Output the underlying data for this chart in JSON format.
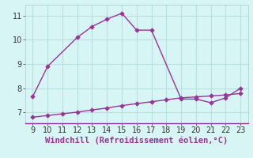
{
  "x_upper": [
    9,
    10,
    12,
    13,
    14,
    15,
    16,
    17,
    19,
    20,
    21,
    22,
    23
  ],
  "y_upper": [
    7.65,
    8.9,
    10.1,
    10.55,
    10.85,
    11.1,
    10.4,
    10.4,
    7.55,
    7.55,
    7.4,
    7.6,
    8.0
  ],
  "x_lower": [
    9,
    10,
    11,
    12,
    13,
    14,
    15,
    16,
    17,
    18,
    19,
    20,
    21,
    22,
    23
  ],
  "y_lower": [
    6.8,
    6.87,
    6.94,
    7.01,
    7.1,
    7.18,
    7.28,
    7.36,
    7.44,
    7.52,
    7.6,
    7.64,
    7.68,
    7.72,
    7.78
  ],
  "line_color": "#993399",
  "bg_color": "#d8f5f5",
  "grid_color": "#b8e0e0",
  "xlabel": "Windchill (Refroidissement éolien,°C)",
  "xlabel_color": "#993399",
  "xlabel_fontsize": 7.5,
  "ylabel_ticks": [
    7,
    8,
    9,
    10,
    11
  ],
  "xticks": [
    9,
    10,
    11,
    12,
    13,
    14,
    15,
    16,
    17,
    18,
    19,
    20,
    21,
    22,
    23
  ],
  "ylim": [
    6.55,
    11.45
  ],
  "xlim": [
    8.5,
    23.5
  ],
  "border_color": "#7777aa",
  "tick_fontsize": 7
}
